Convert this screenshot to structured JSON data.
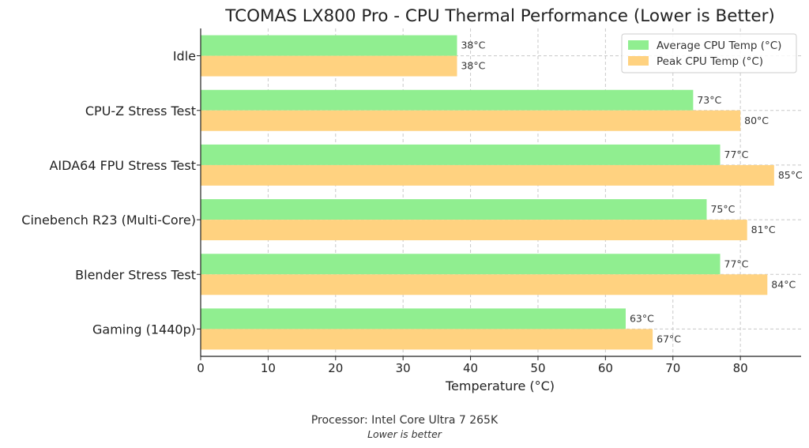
{
  "chart_data": {
    "type": "bar",
    "orientation": "horizontal",
    "title": "TCOMAS LX800 Pro - CPU Thermal Performance (Lower is Better)",
    "xlabel": "Temperature (°C)",
    "ylabel": "",
    "xlim": [
      0,
      89
    ],
    "xticks": [
      0,
      10,
      20,
      30,
      40,
      50,
      60,
      70,
      80
    ],
    "grid": true,
    "legend_position": "top-right",
    "categories": [
      "Idle",
      "CPU-Z Stress Test",
      "AIDA64 FPU Stress Test",
      "Cinebench R23 (Multi-Core)",
      "Blender Stress Test",
      "Gaming (1440p)"
    ],
    "series": [
      {
        "name": "Average CPU Temp (°C)",
        "color": "#90EE90",
        "values": [
          38,
          73,
          77,
          75,
          77,
          63
        ]
      },
      {
        "name": "Peak CPU Temp (°C)",
        "color": "#FFD280",
        "values": [
          38,
          80,
          85,
          81,
          84,
          67
        ]
      }
    ],
    "value_suffix": "°C"
  },
  "footer": {
    "processor": "Processor: Intel Core Ultra 7 265K",
    "note": "Lower is better"
  }
}
